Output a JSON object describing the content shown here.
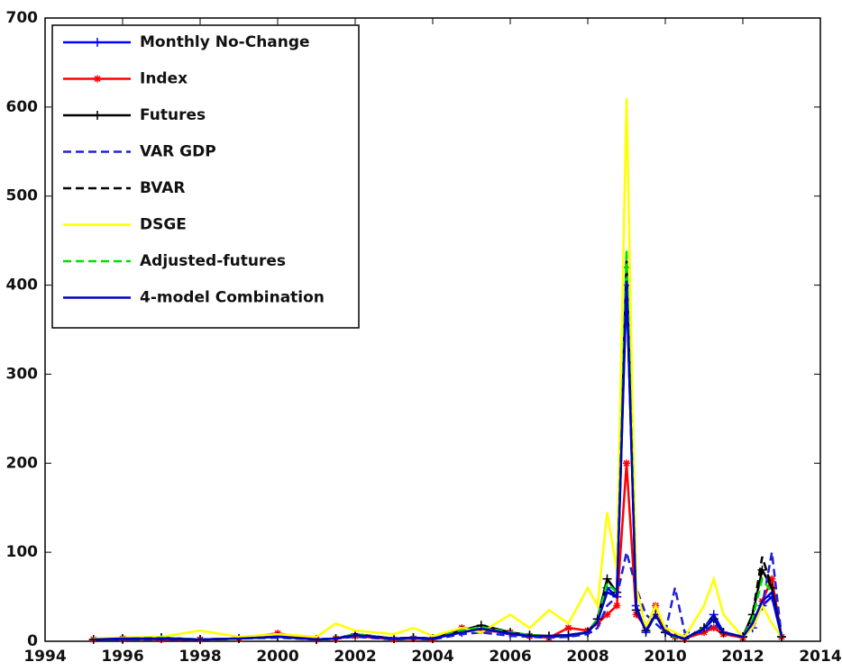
{
  "chart_data": {
    "type": "line",
    "x": [
      1995.25,
      1996,
      1997,
      1998,
      1999,
      2000,
      2001,
      2001.5,
      2002,
      2003,
      2003.5,
      2004,
      2004.75,
      2005.25,
      2006,
      2006.5,
      2007,
      2007.5,
      2008,
      2008.25,
      2008.5,
      2008.75,
      2009,
      2009.25,
      2009.5,
      2009.75,
      2010,
      2010.25,
      2010.5,
      2011,
      2011.25,
      2011.5,
      2012,
      2012.25,
      2012.5,
      2012.75,
      2013
    ],
    "series": [
      {
        "name": "Monthly No-Change",
        "color": "#0000ff",
        "marker": "+",
        "dash": false,
        "values": [
          2,
          2,
          3,
          2,
          3,
          6,
          2,
          3,
          8,
          3,
          4,
          3,
          10,
          14,
          8,
          6,
          5,
          6,
          10,
          25,
          60,
          50,
          400,
          40,
          10,
          30,
          10,
          5,
          3,
          15,
          30,
          10,
          5,
          15,
          40,
          50,
          5
        ]
      },
      {
        "name": "Index",
        "color": "#ff0000",
        "marker": "*",
        "dash": false,
        "values": [
          2,
          3,
          2,
          2,
          3,
          9,
          2,
          3,
          6,
          2,
          3,
          2,
          15,
          12,
          10,
          6,
          4,
          15,
          12,
          20,
          30,
          40,
          200,
          30,
          15,
          40,
          12,
          5,
          3,
          10,
          15,
          8,
          4,
          20,
          45,
          70,
          5
        ]
      },
      {
        "name": "Futures",
        "color": "#000000",
        "marker": "+",
        "dash": false,
        "values": [
          2,
          3,
          4,
          2,
          3,
          5,
          2,
          3,
          8,
          3,
          4,
          3,
          12,
          18,
          10,
          7,
          6,
          7,
          10,
          25,
          70,
          55,
          420,
          35,
          12,
          30,
          10,
          5,
          3,
          15,
          25,
          10,
          5,
          30,
          80,
          60,
          5
        ]
      },
      {
        "name": "VAR GDP",
        "color": "#2020d0",
        "marker": null,
        "dash": true,
        "values": [
          2,
          2,
          2,
          2,
          3,
          4,
          2,
          3,
          5,
          2,
          3,
          2,
          8,
          10,
          6,
          5,
          4,
          5,
          8,
          15,
          40,
          50,
          100,
          60,
          30,
          20,
          10,
          60,
          10,
          10,
          20,
          10,
          5,
          20,
          40,
          100,
          5
        ]
      },
      {
        "name": "BVAR",
        "color": "#000000",
        "marker": null,
        "dash": true,
        "values": [
          2,
          3,
          3,
          2,
          3,
          5,
          2,
          3,
          8,
          3,
          4,
          3,
          12,
          18,
          10,
          7,
          6,
          7,
          10,
          25,
          70,
          55,
          430,
          35,
          12,
          30,
          10,
          5,
          3,
          15,
          25,
          10,
          5,
          30,
          95,
          60,
          5
        ]
      },
      {
        "name": "DSGE",
        "color": "#ffff00",
        "marker": null,
        "dash": false,
        "values": [
          3,
          4,
          5,
          12,
          5,
          8,
          5,
          20,
          12,
          8,
          15,
          6,
          15,
          10,
          30,
          15,
          35,
          20,
          60,
          40,
          145,
          80,
          610,
          60,
          15,
          40,
          15,
          10,
          5,
          40,
          70,
          30,
          5,
          15,
          40,
          20,
          5
        ]
      },
      {
        "name": "Adjusted-futures",
        "color": "#00e000",
        "marker": null,
        "dash": true,
        "values": [
          2,
          3,
          4,
          2,
          3,
          5,
          2,
          3,
          8,
          3,
          4,
          3,
          12,
          16,
          10,
          7,
          6,
          7,
          10,
          25,
          65,
          55,
          440,
          35,
          12,
          30,
          10,
          5,
          3,
          15,
          25,
          10,
          5,
          25,
          70,
          55,
          5
        ]
      },
      {
        "name": "4-model Combination",
        "color": "#0000c0",
        "marker": null,
        "dash": false,
        "values": [
          2,
          3,
          3,
          2,
          3,
          5,
          2,
          3,
          7,
          3,
          4,
          3,
          10,
          14,
          9,
          6,
          6,
          7,
          10,
          22,
          55,
          50,
          405,
          35,
          12,
          30,
          10,
          6,
          3,
          14,
          25,
          10,
          5,
          20,
          45,
          55,
          5
        ]
      }
    ],
    "xlim": [
      1994,
      2014
    ],
    "xticks": [
      1994,
      1996,
      1998,
      2000,
      2002,
      2004,
      2006,
      2008,
      2010,
      2012,
      2014
    ],
    "ylim": [
      0,
      700
    ],
    "yticks": [
      0,
      100,
      200,
      300,
      400,
      500,
      600,
      700
    ],
    "legend": "upper-left"
  }
}
